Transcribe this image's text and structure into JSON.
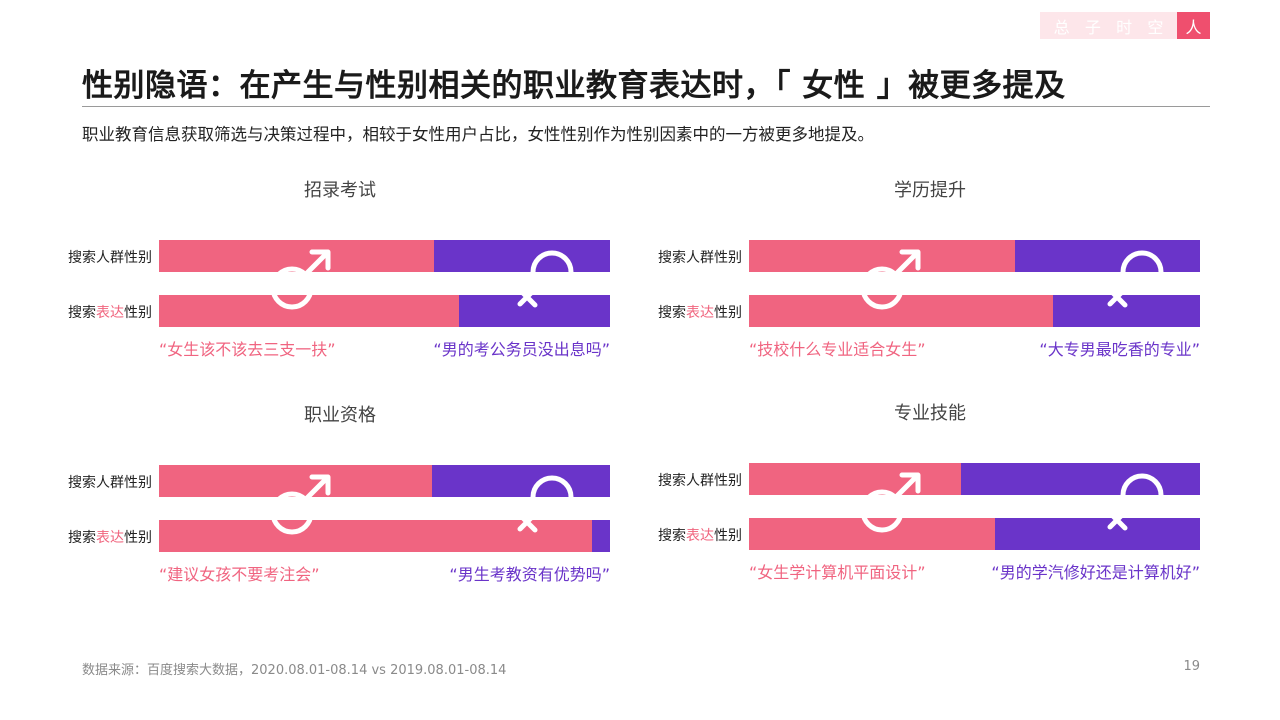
{
  "brand": {
    "chars": [
      "总",
      "子",
      "时",
      "空"
    ],
    "last": "人"
  },
  "title": "性别隐语：在产生与性别相关的职业教育表达时，「 女性 」被更多提及",
  "subtitle": "职业教育信息获取筛选与决策过程中，相较于女性用户占比，女性性别作为性别因素中的一方被更多地提及。",
  "labels": {
    "row1": "搜索人群性别",
    "row2_pre": "搜索",
    "row2_hl": "表达",
    "row2_post": "性别"
  },
  "colors": {
    "female": "#f06480",
    "male": "#6a34c9",
    "accent": "#ef4f6e"
  },
  "chart_data": [
    {
      "type": "bar",
      "title": "招录考试",
      "categories": [
        "搜索人群性别",
        "搜索表达性别"
      ],
      "female_share": [
        0.61,
        0.665
      ],
      "quote_female": "“女生该不该去三支一扶”",
      "quote_male": "“男的考公务员没出息吗”"
    },
    {
      "type": "bar",
      "title": "学历提升",
      "categories": [
        "搜索人群性别",
        "搜索表达性别"
      ],
      "female_share": [
        0.59,
        0.675
      ],
      "quote_female": "“技校什么专业适合女生”",
      "quote_male": "“大专男最吃香的专业”"
    },
    {
      "type": "bar",
      "title": "职业资格",
      "categories": [
        "搜索人群性别",
        "搜索表达性别"
      ],
      "female_share": [
        0.605,
        0.96
      ],
      "quote_female": "“建议女孩不要考注会”",
      "quote_male": "“男生考教资有优势吗”"
    },
    {
      "type": "bar",
      "title": "专业技能",
      "categories": [
        "搜索人群性别",
        "搜索表达性别"
      ],
      "female_share": [
        0.47,
        0.545
      ],
      "quote_female": "“女生学计算机平面设计”",
      "quote_male": "“男的学汽修好还是计算机好”"
    }
  ],
  "icons": {
    "male": "male-symbol-icon",
    "female": "female-symbol-icon"
  },
  "footer": {
    "source": "数据来源：百度搜索大数据，2020.08.01-08.14 vs 2019.08.01-08.14",
    "page": "19"
  }
}
